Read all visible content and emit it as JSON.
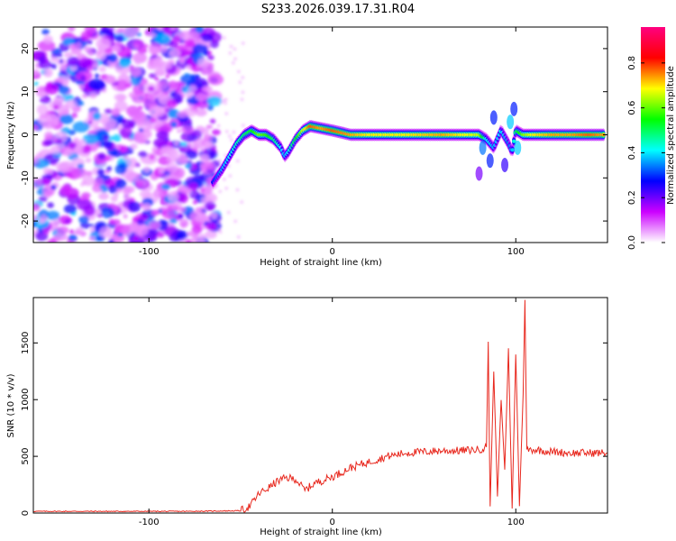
{
  "title": "S233.2026.039.17.31.R04",
  "chart_data": [
    {
      "type": "heatmap",
      "xlabel": "Height of straight line (km)",
      "ylabel": "Frequency (Hz)",
      "xlim": [
        -163,
        150
      ],
      "ylim": [
        -25,
        25
      ],
      "x_ticks": [
        -100,
        0,
        100
      ],
      "y_ticks": [
        -20,
        -10,
        0,
        10,
        20
      ],
      "colorbar": {
        "label": "Normalized spectral amplitude",
        "ticks": [
          "0.0",
          "0.2",
          "0.4",
          "0.6",
          "0.8"
        ],
        "range": [
          0,
          0.96
        ],
        "colors": [
          "#ffffff",
          "#cc00ff",
          "#0000ff",
          "#00ffff",
          "#00ff00",
          "#ffff00",
          "#ff0000",
          "#ff0080"
        ]
      },
      "ridge": {
        "x": [
          -65,
          -60,
          -56,
          -52,
          -48,
          -44,
          -40,
          -36,
          -32,
          -28,
          -26,
          -24,
          -20,
          -16,
          -12,
          -6,
          0,
          10,
          20,
          40,
          60,
          80,
          84,
          88,
          92,
          96,
          98,
          100,
          104,
          110,
          120,
          130,
          140,
          148
        ],
        "freq": [
          -11,
          -8,
          -5,
          -2,
          0,
          1,
          0,
          0,
          -1,
          -3,
          -5,
          -4,
          -1,
          1,
          2,
          1.5,
          1,
          0,
          0,
          0,
          0,
          0,
          -1,
          -3,
          1,
          -2,
          -4,
          1,
          0,
          0,
          0,
          0,
          0,
          0
        ],
        "amplitude": [
          0.35,
          0.45,
          0.5,
          0.55,
          0.6,
          0.65,
          0.75,
          0.7,
          0.6,
          0.5,
          0.45,
          0.5,
          0.65,
          0.8,
          0.95,
          0.9,
          0.95,
          0.9,
          0.85,
          0.85,
          0.9,
          0.8,
          0.5,
          0.45,
          0.5,
          0.4,
          0.45,
          0.6,
          0.75,
          0.85,
          0.9,
          0.9,
          0.95,
          0.9
        ]
      },
      "noise_region_x": [
        -163,
        -63
      ]
    },
    {
      "type": "line",
      "xlabel": "Height of straight line (km)",
      "ylabel": "SNR (10 * v/v)",
      "xlim": [
        -163,
        150
      ],
      "ylim": [
        0,
        1900
      ],
      "x_ticks": [
        -100,
        0,
        100
      ],
      "y_ticks": [
        0,
        500,
        1000,
        1500
      ],
      "color": "#e8281e",
      "x": [
        -163,
        -120,
        -80,
        -50,
        -45,
        -40,
        -35,
        -30,
        -25,
        -20,
        -15,
        -10,
        -5,
        0,
        5,
        10,
        20,
        30,
        40,
        50,
        60,
        70,
        80,
        84,
        85,
        86,
        88,
        90,
        92,
        94,
        96,
        98,
        100,
        102,
        104,
        105,
        106,
        110,
        120,
        130,
        140,
        150
      ],
      "y": [
        15,
        15,
        15,
        20,
        60,
        170,
        220,
        280,
        310,
        300,
        200,
        260,
        290,
        320,
        360,
        400,
        450,
        500,
        530,
        540,
        550,
        550,
        560,
        580,
        1510,
        60,
        1250,
        150,
        1000,
        380,
        1450,
        40,
        1400,
        60,
        1050,
        1880,
        560,
        560,
        540,
        530,
        530,
        530
      ]
    }
  ]
}
